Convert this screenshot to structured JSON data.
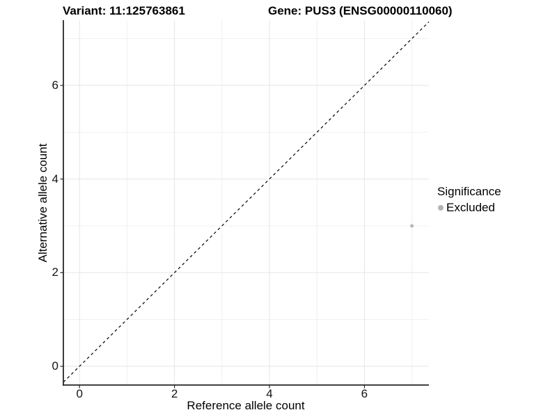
{
  "chart_data": {
    "type": "scatter",
    "title_left": "Variant: 11:125763861",
    "title_right": "Gene: PUS3 (ENSG00000110060)",
    "xlabel": "Reference allele count",
    "ylabel": "Alternative allele count",
    "xlim": [
      -0.35,
      7.35
    ],
    "ylim": [
      -0.4,
      7.4
    ],
    "x_major_ticks": [
      0,
      2,
      4,
      6
    ],
    "x_minor_ticks": [
      1,
      3,
      5,
      7
    ],
    "y_major_ticks": [
      0,
      2,
      4,
      6
    ],
    "y_minor_ticks": [
      1,
      3,
      5,
      7
    ],
    "grid": "major+minor, light gray on white",
    "identity_line": {
      "type": "abline",
      "slope": 1,
      "intercept": 0,
      "style": "dashed",
      "color": "#000000"
    },
    "series": [
      {
        "name": "Excluded",
        "color": "#b9b9b9",
        "points": [
          {
            "x": 7,
            "y": 3
          }
        ]
      }
    ],
    "legend": {
      "title": "Significance",
      "position": "right",
      "items": [
        {
          "label": "Excluded",
          "color": "#b3b3b3"
        }
      ]
    }
  },
  "colors": {
    "background": "#ffffff",
    "grid_major": "#e5e5e5",
    "grid_minor": "#f0f0f0",
    "axis_line": "#262626",
    "tick_text": "#141414",
    "point": "#b9b9b9"
  }
}
